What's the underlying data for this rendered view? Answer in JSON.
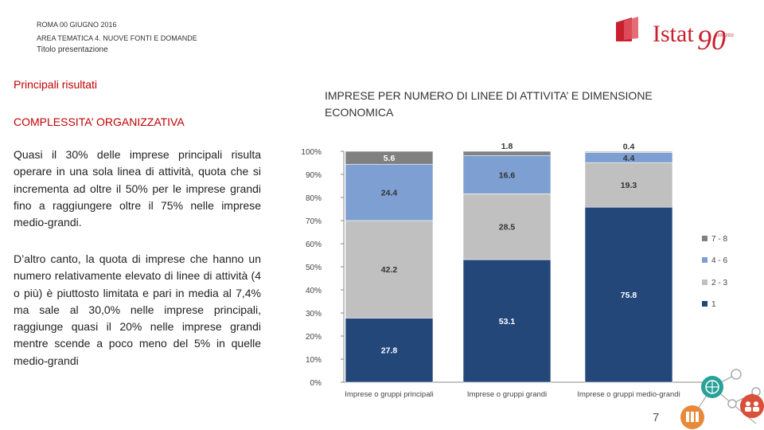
{
  "header": {
    "line1": "ROMA 00 GIUGNO 2016",
    "line2": "AREA TEMATICA 4. NUOVE FONTI E DOMANDE",
    "line3": "Titolo presentazione"
  },
  "logo": {
    "text": "Istat",
    "suffix": "90",
    "subtext": "1926-2016",
    "color": "#c8202f"
  },
  "left": {
    "title": "Principali risultati",
    "subtitle": "COMPLESSITA’ ORGANIZZATIVA",
    "paragraph1": "Quasi il 30% delle imprese principali risulta operare in una sola linea di attività, quota che si incrementa ad oltre il 50% per le imprese grandi fino a raggiungere oltre il 75% nelle imprese medio-grandi.",
    "paragraph2": "D’altro canto, la quota di imprese che hanno un numero relativamente elevato di linee di attività (4 o più) è piuttosto limitata e pari in media al 7,4% ma sale al 30,0% nelle imprese principali, raggiunge quasi il 20% nelle imprese grandi mentre scende a poco meno del 5% in quelle medio-grandi"
  },
  "chart_title": "IMPRESE PER NUMERO DI LINEE DI ATTIVITA’ E DIMENSIONE ECONOMICA",
  "page_number": "7",
  "chart_data": {
    "type": "bar",
    "stacked": true,
    "categories": [
      "Imprese o gruppi principali",
      "Imprese o gruppi grandi",
      "Imprese o gruppi medio-grandi"
    ],
    "series": [
      {
        "name": "1",
        "values": [
          27.8,
          53.1,
          75.8
        ],
        "color": "#24477a",
        "label_color": "#ffffff"
      },
      {
        "name": "2 - 3",
        "values": [
          42.2,
          28.5,
          19.3
        ],
        "color": "#c0c0c0",
        "label_color": "#333333"
      },
      {
        "name": "4 - 6",
        "values": [
          24.4,
          16.6,
          4.4
        ],
        "color": "#7e9fd2",
        "label_color": "#333333"
      },
      {
        "name": "7 - 8",
        "values": [
          5.6,
          1.8,
          0.4
        ],
        "color": "#808080",
        "label_color": "#ffffff"
      }
    ],
    "y_ticks": [
      "0%",
      "10%",
      "20%",
      "30%",
      "40%",
      "50%",
      "60%",
      "70%",
      "80%",
      "90%",
      "100%"
    ],
    "ylim": [
      0,
      100
    ],
    "legend_position": "right",
    "legend_order": [
      "7 - 8",
      "4 - 6",
      "2 - 3",
      "1"
    ],
    "grid": false
  },
  "icons": [
    "network-icon",
    "people-icon",
    "books-icon",
    "globe-icon"
  ]
}
